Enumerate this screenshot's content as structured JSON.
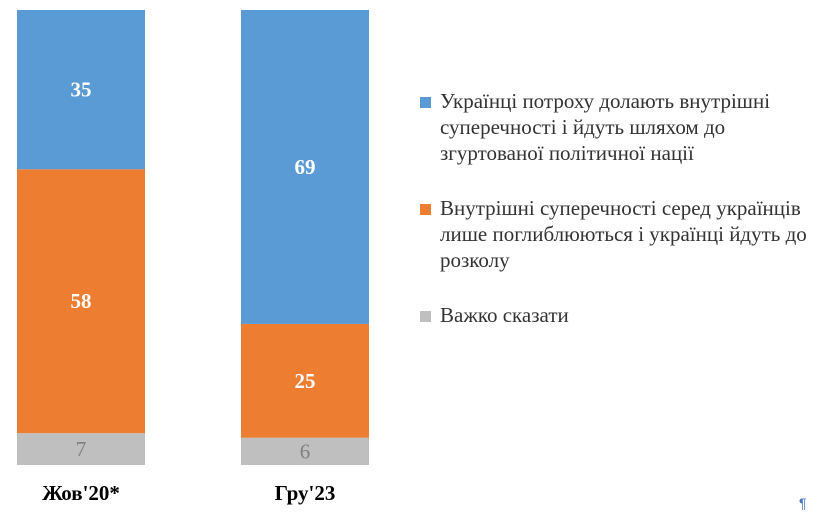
{
  "chart_data": {
    "type": "bar",
    "stacked": true,
    "categories": [
      "Жов'20*",
      "Гру'23"
    ],
    "series": [
      {
        "name": "Українці потроху долають внутрішні суперечності і йдуть шляхом до згуртованої політичної нації",
        "color": "#5b9bd5",
        "label_color": "#ffffff",
        "values": [
          35,
          69
        ]
      },
      {
        "name": "Внутрішні суперечності серед українців лише поглиблюються і українці йдуть до розколу",
        "color": "#ed7d31",
        "label_color": "#ffffff",
        "values": [
          58,
          25
        ]
      },
      {
        "name": "Важко сказати",
        "color": "#bfbfbf",
        "label_color": "#7f7f7f",
        "values": [
          7,
          6
        ]
      }
    ],
    "stack_order": [
      "Важко сказати",
      "Внутрішні суперечності серед українців лише поглиблюються і українці йдуть до розколу",
      "Українці потроху долають внутрішні суперечності і йдуть шляхом до згуртованої політичної нації"
    ],
    "ylim": [
      0,
      100
    ],
    "legend_position": "right",
    "grid": false
  },
  "page": {
    "pilcrow": "¶"
  }
}
